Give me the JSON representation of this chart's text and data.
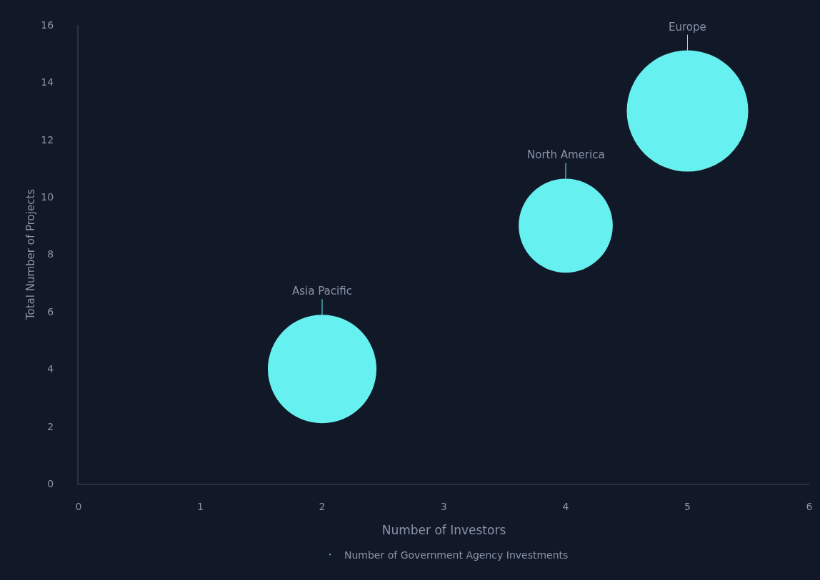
{
  "chart_data": {
    "type": "bubble",
    "xlabel": "Number of Investors",
    "ylabel": "Total Number of Projects",
    "x": [
      2,
      4,
      5
    ],
    "series": [
      {
        "name": "Number of Government Agency Investments",
        "color": "#67f0f0",
        "values": [
          4,
          9,
          13
        ],
        "sizes": [
          0.8,
          0.6,
          1
        ]
      }
    ],
    "annotations": [
      {
        "text": "Asia Pacific",
        "x": 2,
        "y": 4
      },
      {
        "text": "North America",
        "x": 4,
        "y": 9
      },
      {
        "text": "Europe",
        "x": 5,
        "y": 13
      }
    ],
    "xlim": [
      0,
      6
    ],
    "xticks": [
      0,
      1,
      2,
      3,
      4,
      5,
      6
    ],
    "ylim": [
      0,
      16
    ],
    "yticks": [
      0,
      2,
      4,
      6,
      8,
      10,
      12,
      14,
      16
    ],
    "grid": false,
    "legend": "bottom",
    "marker": "circle"
  }
}
